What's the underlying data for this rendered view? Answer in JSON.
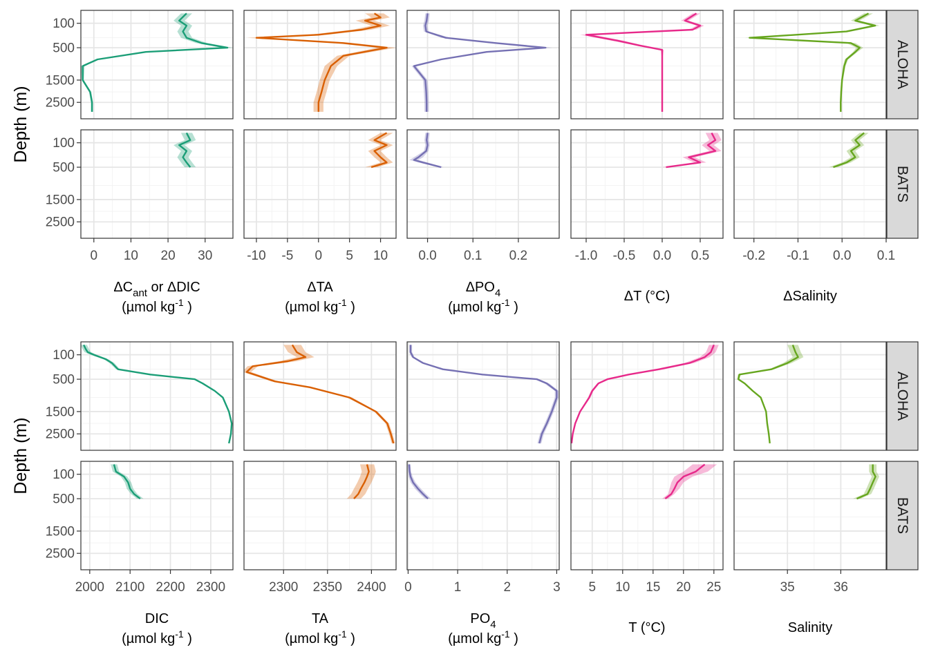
{
  "figure": {
    "y_axis_title": "Depth (m)",
    "sites": [
      "ALOHA",
      "BATS"
    ],
    "y_ticks": [
      100,
      500,
      1500,
      2500
    ]
  },
  "chart_data": [
    {
      "type": "line",
      "block": "anomalies",
      "variable": "dC",
      "xlabel_lines": [
        "ΔC_ant or ΔDIC",
        "(µmol kg-1 )"
      ],
      "color": "#1b9e77",
      "xlim": [
        -3.5,
        37.5
      ],
      "xticks": [
        0,
        10,
        20,
        30
      ],
      "tick_labels": [
        "0",
        "10",
        "20",
        "30"
      ],
      "series": [
        {
          "site": "ALOHA",
          "depth": [
            25,
            75,
            125,
            200,
            300,
            400,
            500,
            600,
            800,
            1000,
            1500,
            2000,
            2500,
            3000
          ],
          "values": [
            25,
            23,
            25,
            24,
            25,
            29,
            36,
            14,
            1,
            -3,
            -3,
            -1,
            -0.5,
            -0.5
          ],
          "band": [
            1.5,
            1.5,
            1.5,
            1.5,
            1.5,
            1.5,
            1.5,
            1,
            0.5,
            0.5,
            0.3,
            0.3,
            0.3,
            0.3
          ]
        },
        {
          "site": "BATS",
          "depth": [
            25,
            75,
            125,
            200,
            300,
            400,
            500
          ],
          "values": [
            25,
            26,
            23,
            25,
            24,
            25,
            26
          ],
          "band": [
            1.5,
            1.5,
            1.5,
            1.5,
            1.5,
            1.5,
            1.5
          ]
        }
      ]
    },
    {
      "type": "line",
      "block": "anomalies",
      "variable": "dTA",
      "xlabel_lines": [
        "ΔTA",
        "(µmol kg-1 )"
      ],
      "color": "#d95f02",
      "xlim": [
        -12,
        12.5
      ],
      "xticks": [
        -10,
        -5,
        0,
        5,
        10
      ],
      "tick_labels": [
        "-10",
        "-5",
        "0",
        "5",
        "10"
      ],
      "series": [
        {
          "site": "ALOHA",
          "depth": [
            25,
            50,
            75,
            125,
            175,
            250,
            300,
            400,
            500,
            700,
            1000,
            1500,
            2000,
            2500,
            3000
          ],
          "values": [
            9,
            10,
            7.5,
            10,
            7,
            0,
            -10,
            4,
            11,
            4,
            2,
            1,
            0.5,
            0,
            0
          ],
          "band": [
            1.5,
            1.5,
            1.5,
            1.5,
            1.5,
            1.5,
            1.5,
            1.5,
            1.5,
            1,
            1,
            0.8,
            0.8,
            0.8,
            0.8
          ]
        },
        {
          "site": "BATS",
          "depth": [
            25,
            75,
            125,
            200,
            300,
            400,
            500
          ],
          "values": [
            11,
            9,
            11,
            9,
            10,
            11,
            8.5
          ],
          "band": [
            1,
            1,
            1,
            1,
            1,
            1,
            1
          ]
        }
      ]
    },
    {
      "type": "line",
      "block": "anomalies",
      "variable": "dPO4",
      "xlabel_lines": [
        "ΔPO4",
        "(µmol kg-1 )"
      ],
      "color": "#7570b3",
      "xlim": [
        -0.045,
        0.29
      ],
      "xticks": [
        0.0,
        0.1,
        0.2
      ],
      "tick_labels": [
        "0.0",
        "0.1",
        "0.2"
      ],
      "series": [
        {
          "site": "ALOHA",
          "depth": [
            25,
            75,
            125,
            200,
            300,
            400,
            500,
            600,
            800,
            1000,
            1500,
            2000,
            2500,
            3000
          ],
          "values": [
            0,
            -0.002,
            -0.005,
            -0.003,
            0.04,
            0.15,
            0.26,
            0.13,
            0.03,
            -0.03,
            -0.005,
            -0.003,
            -0.002,
            -0.002
          ],
          "band": [
            0.005,
            0.005,
            0.005,
            0.005,
            0.01,
            0.01,
            0.015,
            0.01,
            0.005,
            0.005,
            0.005,
            0.005,
            0.005,
            0.005
          ]
        },
        {
          "site": "BATS",
          "depth": [
            25,
            75,
            125,
            200,
            300,
            350,
            400,
            500
          ],
          "values": [
            0,
            -0.002,
            0,
            -0.003,
            -0.02,
            -0.03,
            -0.01,
            0.03
          ],
          "band": [
            0.005,
            0.005,
            0.005,
            0.005,
            0.01,
            0.01,
            0.01,
            0.005
          ]
        }
      ]
    },
    {
      "type": "line",
      "block": "anomalies",
      "variable": "dT",
      "xlabel_lines": [
        "ΔT (°C)"
      ],
      "color": "#e7298a",
      "xlim": [
        -1.2,
        0.8
      ],
      "xticks": [
        -1.0,
        -0.5,
        0.0,
        0.5
      ],
      "tick_labels": [
        "-1.0",
        "-0.5",
        "0.0",
        "0.5"
      ],
      "series": [
        {
          "site": "ALOHA",
          "depth": [
            25,
            75,
            125,
            175,
            250,
            350,
            450,
            550,
            700,
            1000,
            1500,
            2000,
            2500,
            3000
          ],
          "values": [
            0.45,
            0.3,
            0.5,
            0.4,
            -1.0,
            -0.6,
            -0.3,
            0,
            0,
            0,
            0,
            0,
            0,
            0
          ],
          "band": [
            0.05,
            0.05,
            0.05,
            0.05,
            0.08,
            0.08,
            0.05,
            0.02,
            0.01,
            0.01,
            0.01,
            0.01,
            0.01,
            0.01
          ]
        },
        {
          "site": "BATS",
          "depth": [
            25,
            75,
            125,
            200,
            300,
            400,
            500
          ],
          "values": [
            0.65,
            0.7,
            0.6,
            0.7,
            0.35,
            0.5,
            0.05
          ],
          "band": [
            0.08,
            0.08,
            0.08,
            0.08,
            0.08,
            0.08,
            0.05
          ]
        }
      ]
    },
    {
      "type": "line",
      "block": "anomalies",
      "variable": "dS",
      "xlabel_lines": [
        "ΔSalinity"
      ],
      "color": "#66a61e",
      "xlim": [
        -0.245,
        0.1
      ],
      "xticks": [
        -0.2,
        -0.1,
        0.0,
        0.1
      ],
      "tick_labels": [
        "-0.2",
        "-0.1",
        "0.0",
        "0.1"
      ],
      "series": [
        {
          "site": "ALOHA",
          "depth": [
            25,
            75,
            125,
            200,
            300,
            400,
            500,
            600,
            800,
            1000,
            1500,
            2000,
            2500,
            3000
          ],
          "values": [
            0.06,
            0.03,
            0.075,
            0.01,
            -0.21,
            0.02,
            0.04,
            0.03,
            0.01,
            0.005,
            0,
            -0.002,
            -0.003,
            -0.003
          ],
          "band": [
            0.01,
            0.01,
            0.01,
            0.01,
            0.01,
            0.01,
            0.008,
            0.005,
            0.004,
            0.003,
            0.002,
            0.002,
            0.002,
            0.002
          ]
        },
        {
          "site": "BATS",
          "depth": [
            25,
            75,
            125,
            200,
            300,
            400,
            500
          ],
          "values": [
            0.05,
            0.03,
            0.04,
            0.02,
            0.03,
            0.01,
            -0.02
          ],
          "band": [
            0.01,
            0.01,
            0.01,
            0.01,
            0.01,
            0.01,
            0.01
          ]
        }
      ]
    },
    {
      "type": "line",
      "block": "profiles",
      "variable": "DIC",
      "xlabel_lines": [
        "DIC",
        "(µmol kg-1 )"
      ],
      "color": "#1b9e77",
      "xlim": [
        1978,
        2355
      ],
      "xticks": [
        2000,
        2100,
        2200,
        2300
      ],
      "tick_labels": [
        "2000",
        "2100",
        "2200",
        "2300"
      ],
      "series": [
        {
          "site": "ALOHA",
          "depth": [
            25,
            50,
            75,
            100,
            150,
            200,
            300,
            400,
            500,
            600,
            800,
            1000,
            1500,
            2000,
            2500,
            3000
          ],
          "values": [
            1985,
            1990,
            1995,
            2010,
            2040,
            2055,
            2070,
            2150,
            2260,
            2280,
            2310,
            2330,
            2345,
            2352,
            2350,
            2345
          ],
          "band": [
            8,
            8,
            8,
            8,
            6,
            6,
            5,
            4,
            3,
            3,
            2,
            2,
            2,
            2,
            2,
            2
          ]
        },
        {
          "site": "BATS",
          "depth": [
            25,
            75,
            125,
            200,
            300,
            400,
            500
          ],
          "values": [
            2060,
            2065,
            2085,
            2095,
            2100,
            2110,
            2125
          ],
          "band": [
            8,
            8,
            8,
            8,
            8,
            8,
            8
          ]
        }
      ]
    },
    {
      "type": "line",
      "block": "profiles",
      "variable": "TA",
      "xlabel_lines": [
        "TA",
        "(µmol kg-1 )"
      ],
      "color": "#d95f02",
      "xlim": [
        2255,
        2428
      ],
      "xticks": [
        2300,
        2350,
        2400
      ],
      "tick_labels": [
        "2300",
        "2350",
        "2400"
      ],
      "series": [
        {
          "site": "ALOHA",
          "depth": [
            25,
            75,
            125,
            175,
            250,
            350,
            450,
            550,
            700,
            1000,
            1500,
            2000,
            2500,
            3000
          ],
          "values": [
            2310,
            2315,
            2325,
            2305,
            2265,
            2258,
            2275,
            2290,
            2330,
            2375,
            2405,
            2418,
            2422,
            2425
          ],
          "band": [
            10,
            10,
            10,
            10,
            6,
            5,
            4,
            4,
            3,
            3,
            2,
            2,
            2,
            2
          ]
        },
        {
          "site": "BATS",
          "depth": [
            25,
            75,
            125,
            200,
            300,
            400,
            500
          ],
          "values": [
            2395,
            2397,
            2395,
            2392,
            2388,
            2385,
            2380
          ],
          "band": [
            8,
            8,
            8,
            8,
            8,
            8,
            8
          ]
        }
      ]
    },
    {
      "type": "line",
      "block": "profiles",
      "variable": "PO4",
      "xlabel_lines": [
        "PO4",
        "(µmol kg-1 )"
      ],
      "color": "#7570b3",
      "xlim": [
        -0.02,
        3.05
      ],
      "xticks": [
        0,
        1,
        2,
        3
      ],
      "tick_labels": [
        "0",
        "1",
        "2",
        "3"
      ],
      "series": [
        {
          "site": "ALOHA",
          "depth": [
            25,
            75,
            125,
            200,
            300,
            400,
            500,
            600,
            800,
            1000,
            1500,
            2000,
            2500,
            3000
          ],
          "values": [
            0.05,
            0.05,
            0.1,
            0.3,
            0.7,
            1.5,
            2.6,
            2.8,
            3.0,
            3.0,
            2.9,
            2.8,
            2.7,
            2.65
          ],
          "band": [
            0.03,
            0.03,
            0.03,
            0.04,
            0.05,
            0.05,
            0.05,
            0.05,
            0.04,
            0.04,
            0.04,
            0.04,
            0.04,
            0.04
          ]
        },
        {
          "site": "BATS",
          "depth": [
            25,
            75,
            125,
            200,
            300,
            400,
            500
          ],
          "values": [
            0.02,
            0.03,
            0.05,
            0.1,
            0.2,
            0.3,
            0.4
          ],
          "band": [
            0.03,
            0.03,
            0.04,
            0.05,
            0.06,
            0.06,
            0.06
          ]
        }
      ]
    },
    {
      "type": "line",
      "block": "profiles",
      "variable": "T",
      "xlabel_lines": [
        "T (°C)"
      ],
      "color": "#e7298a",
      "xlim": [
        1.5,
        26.5
      ],
      "xticks": [
        5,
        10,
        15,
        20,
        25
      ],
      "tick_labels": [
        "5",
        "10",
        "15",
        "20",
        "25"
      ],
      "series": [
        {
          "site": "ALOHA",
          "depth": [
            25,
            75,
            125,
            200,
            300,
            400,
            500,
            600,
            800,
            1000,
            1500,
            2000,
            2500,
            3000
          ],
          "values": [
            25,
            24.5,
            23.5,
            21,
            16,
            11,
            7.5,
            6,
            5,
            4.5,
            3,
            2.2,
            1.8,
            1.6
          ],
          "band": [
            0.8,
            0.8,
            0.8,
            0.8,
            0.8,
            0.5,
            0.3,
            0.2,
            0.2,
            0.2,
            0.1,
            0.1,
            0.1,
            0.1
          ]
        },
        {
          "site": "BATS",
          "depth": [
            25,
            75,
            125,
            200,
            300,
            400,
            500
          ],
          "values": [
            23.5,
            22,
            20,
            19,
            18.5,
            18,
            17
          ],
          "band": [
            2,
            2,
            1.5,
            1,
            0.8,
            0.5,
            0.5
          ]
        }
      ]
    },
    {
      "type": "line",
      "block": "profiles",
      "variable": "Salinity",
      "xlabel_lines": [
        "Salinity"
      ],
      "color": "#66a61e",
      "xlim": [
        34.0,
        36.85
      ],
      "xticks": [
        35,
        36
      ],
      "tick_labels": [
        "35",
        "36"
      ],
      "series": [
        {
          "site": "ALOHA",
          "depth": [
            25,
            75,
            125,
            200,
            300,
            400,
            500,
            600,
            800,
            1000,
            1500,
            2000,
            2500,
            3000
          ],
          "values": [
            35.1,
            35.15,
            35.2,
            35.0,
            34.7,
            34.1,
            34.08,
            34.2,
            34.35,
            34.5,
            34.6,
            34.62,
            34.65,
            34.67
          ],
          "band": [
            0.1,
            0.1,
            0.1,
            0.08,
            0.05,
            0.03,
            0.02,
            0.02,
            0.02,
            0.01,
            0.01,
            0.01,
            0.01,
            0.01
          ]
        },
        {
          "site": "BATS",
          "depth": [
            25,
            75,
            125,
            200,
            300,
            400,
            500
          ],
          "values": [
            36.6,
            36.6,
            36.65,
            36.6,
            36.55,
            36.5,
            36.3
          ],
          "band": [
            0.07,
            0.07,
            0.07,
            0.07,
            0.07,
            0.07,
            0.07
          ]
        }
      ]
    }
  ]
}
